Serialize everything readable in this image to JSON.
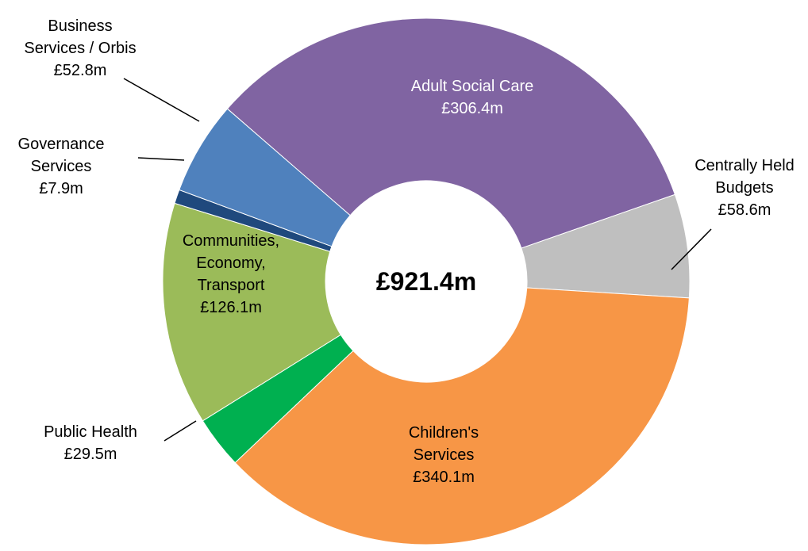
{
  "chart_data": {
    "type": "pie",
    "variant": "donut",
    "center_label": "£921.4m",
    "legend": "none",
    "slices": [
      {
        "name": "Adult Social Care",
        "value": 306.4,
        "value_label": "£306.4m",
        "label_lines": [
          "Adult Social Care",
          "£306.4m"
        ],
        "color": "#8064A2",
        "label_color": "#FFFFFF"
      },
      {
        "name": "Centrally Held Budgets",
        "value": 58.6,
        "value_label": "£58.6m",
        "label_lines": [
          "Centrally Held",
          "Budgets",
          "£58.6m"
        ],
        "color": "#BFBFBF",
        "label_color": "#000000"
      },
      {
        "name": "Children's Services",
        "value": 340.1,
        "value_label": "£340.1m",
        "label_lines": [
          "Children's",
          "Services",
          "£340.1m"
        ],
        "color": "#F79646",
        "label_color": "#000000"
      },
      {
        "name": "Public Health",
        "value": 29.5,
        "value_label": "£29.5m",
        "label_lines": [
          "Public Health",
          "£29.5m"
        ],
        "color": "#00B050",
        "label_color": "#000000"
      },
      {
        "name": "Communities, Economy, Transport",
        "value": 126.1,
        "value_label": "£126.1m",
        "label_lines": [
          "Communities,",
          "Economy,",
          "Transport",
          "£126.1m"
        ],
        "color": "#9BBB59",
        "label_color": "#000000"
      },
      {
        "name": "Governance Services",
        "value": 7.9,
        "value_label": "£7.9m",
        "label_lines": [
          "Governance",
          "Services",
          "£7.9m"
        ],
        "color": "#1F497D",
        "label_color": "#000000"
      },
      {
        "name": "Business Services / Orbis",
        "value": 52.8,
        "value_label": "£52.8m",
        "label_lines": [
          "Business",
          "Services / Orbis",
          "£52.8m"
        ],
        "color": "#4F81BD",
        "label_color": "#000000"
      }
    ]
  }
}
